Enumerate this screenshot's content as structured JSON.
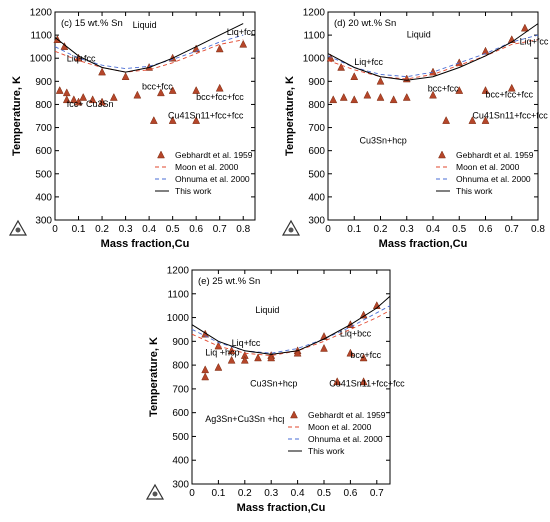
{
  "chart_data": [
    {
      "type": "line",
      "panel_label": "(c) 15 wt.% Sn",
      "xlabel": "Mass fraction,Cu",
      "ylabel": "Temperature, K",
      "xlim": [
        0,
        0.85
      ],
      "ylim": [
        300,
        1200
      ],
      "xticks": [
        0,
        0.1,
        0.2,
        0.3,
        0.4,
        0.5,
        0.6,
        0.7,
        0.8
      ],
      "xtick_labels": [
        "0",
        "0.1",
        "0.2",
        "0.3",
        "0.4",
        "0.5",
        "0.6",
        "0.7",
        "0.8"
      ],
      "yticks": [
        300,
        400,
        500,
        600,
        700,
        800,
        900,
        1000,
        1100,
        1200
      ],
      "ytick_labels": [
        "300",
        "400",
        "500",
        "600",
        "700",
        "800",
        "900",
        "1000",
        "1100",
        "1200"
      ],
      "legend_position": "center-right",
      "series": [
        {
          "name": "Gebhardt et al. 1959",
          "style": "marker",
          "points": [
            [
              0.01,
              1080
            ],
            [
              0.04,
              1050
            ],
            [
              0.1,
              1000
            ],
            [
              0.2,
              940
            ],
            [
              0.3,
              920
            ],
            [
              0.4,
              960
            ],
            [
              0.5,
              1000
            ],
            [
              0.6,
              1040
            ],
            [
              0.7,
              1040
            ],
            [
              0.8,
              1060
            ],
            [
              0.02,
              860
            ],
            [
              0.05,
              850
            ],
            [
              0.08,
              820
            ],
            [
              0.12,
              830
            ],
            [
              0.16,
              820
            ],
            [
              0.2,
              810
            ],
            [
              0.25,
              830
            ],
            [
              0.35,
              840
            ],
            [
              0.45,
              850
            ],
            [
              0.5,
              860
            ],
            [
              0.6,
              860
            ],
            [
              0.7,
              870
            ],
            [
              0.05,
              820
            ],
            [
              0.1,
              810
            ],
            [
              0.42,
              730
            ],
            [
              0.5,
              730
            ],
            [
              0.6,
              730
            ]
          ]
        },
        {
          "name": "Moon et al. 2000",
          "style": "dashed",
          "color": "#e2472e",
          "points": [
            [
              0,
              1030
            ],
            [
              0.1,
              990
            ],
            [
              0.2,
              960
            ],
            [
              0.3,
              940
            ],
            [
              0.4,
              950
            ],
            [
              0.5,
              980
            ],
            [
              0.6,
              1020
            ],
            [
              0.7,
              1060
            ],
            [
              0.8,
              1080
            ]
          ]
        },
        {
          "name": "Ohnuma et al. 2000",
          "style": "dashed",
          "color": "#4a6cd4",
          "points": [
            [
              0,
              1050
            ],
            [
              0.1,
              1000
            ],
            [
              0.2,
              970
            ],
            [
              0.3,
              955
            ],
            [
              0.4,
              965
            ],
            [
              0.5,
              995
            ],
            [
              0.6,
              1030
            ],
            [
              0.7,
              1070
            ],
            [
              0.8,
              1100
            ]
          ]
        },
        {
          "name": "This work",
          "style": "solid",
          "color": "#000000",
          "points": [
            [
              0,
              1090
            ],
            [
              0.1,
              1010
            ],
            [
              0.2,
              960
            ],
            [
              0.3,
              940
            ],
            [
              0.4,
              960
            ],
            [
              0.5,
              1000
            ],
            [
              0.6,
              1050
            ],
            [
              0.7,
              1100
            ],
            [
              0.8,
              1150
            ]
          ]
        }
      ],
      "region_labels": [
        "Liquid",
        "Liq+fcc",
        "Liq+fcc",
        "bcc+fcc",
        "bcc+fcc+fcc",
        "fcc+ Cu3Sn",
        "Cu41Sn11+fcc+fcc"
      ]
    },
    {
      "type": "line",
      "panel_label": "(d) 20 wt.% Sn",
      "xlabel": "Mass fraction,Cu",
      "ylabel": "Temperature, K",
      "xlim": [
        0,
        0.8
      ],
      "ylim": [
        300,
        1200
      ],
      "xticks": [
        0,
        0.1,
        0.2,
        0.3,
        0.4,
        0.5,
        0.6,
        0.7,
        0.8
      ],
      "xtick_labels": [
        "0",
        "0.1",
        "0.2",
        "0.3",
        "0.4",
        "0.5",
        "0.6",
        "0.7",
        "0.8"
      ],
      "yticks": [
        300,
        400,
        500,
        600,
        700,
        800,
        900,
        1000,
        1100,
        1200
      ],
      "ytick_labels": [
        "300",
        "400",
        "500",
        "600",
        "700",
        "800",
        "900",
        "1000",
        "1100",
        "1200"
      ],
      "legend_position": "center-right",
      "series": [
        {
          "name": "Gebhardt et al. 1959",
          "style": "marker",
          "points": [
            [
              0.01,
              1000
            ],
            [
              0.05,
              960
            ],
            [
              0.1,
              920
            ],
            [
              0.2,
              900
            ],
            [
              0.3,
              910
            ],
            [
              0.4,
              940
            ],
            [
              0.5,
              980
            ],
            [
              0.6,
              1030
            ],
            [
              0.7,
              1080
            ],
            [
              0.75,
              1130
            ],
            [
              0.02,
              820
            ],
            [
              0.06,
              830
            ],
            [
              0.1,
              820
            ],
            [
              0.15,
              840
            ],
            [
              0.2,
              830
            ],
            [
              0.25,
              820
            ],
            [
              0.3,
              830
            ],
            [
              0.4,
              840
            ],
            [
              0.5,
              860
            ],
            [
              0.6,
              860
            ],
            [
              0.7,
              870
            ],
            [
              0.45,
              730
            ],
            [
              0.55,
              730
            ],
            [
              0.6,
              730
            ]
          ]
        },
        {
          "name": "Moon et al. 2000",
          "style": "dashed",
          "color": "#e2472e",
          "points": [
            [
              0,
              990
            ],
            [
              0.1,
              950
            ],
            [
              0.2,
              920
            ],
            [
              0.3,
              910
            ],
            [
              0.4,
              930
            ],
            [
              0.5,
              970
            ],
            [
              0.6,
              1010
            ],
            [
              0.7,
              1060
            ],
            [
              0.8,
              1080
            ]
          ]
        },
        {
          "name": "Ohnuma et al. 2000",
          "style": "dashed",
          "color": "#4a6cd4",
          "points": [
            [
              0,
              1010
            ],
            [
              0.1,
              960
            ],
            [
              0.2,
              930
            ],
            [
              0.3,
              920
            ],
            [
              0.4,
              940
            ],
            [
              0.5,
              980
            ],
            [
              0.6,
              1020
            ],
            [
              0.7,
              1070
            ],
            [
              0.8,
              1100
            ]
          ]
        },
        {
          "name": "This work",
          "style": "solid",
          "color": "#000000",
          "points": [
            [
              0,
              1020
            ],
            [
              0.1,
              960
            ],
            [
              0.2,
              920
            ],
            [
              0.3,
              905
            ],
            [
              0.4,
              920
            ],
            [
              0.5,
              960
            ],
            [
              0.6,
              1010
            ],
            [
              0.7,
              1070
            ],
            [
              0.8,
              1150
            ]
          ]
        }
      ],
      "region_labels": [
        "Liquid",
        "Liq+fcc",
        "Liq+fcc",
        "bcc+fcc",
        "bcc+fcc+fcc",
        "Cu3Sn+hcp",
        "Cu41Sn11+fcc+fcc"
      ]
    },
    {
      "type": "line",
      "panel_label": "(e) 25 wt.% Sn",
      "xlabel": "Mass fraction,Cu",
      "ylabel": "Temperature, K",
      "xlim": [
        0,
        0.75
      ],
      "ylim": [
        300,
        1200
      ],
      "xticks": [
        0,
        0.1,
        0.2,
        0.3,
        0.4,
        0.5,
        0.6,
        0.7
      ],
      "xtick_labels": [
        "0",
        "0.1",
        "0.2",
        "0.3",
        "0.4",
        "0.5",
        "0.6",
        "0.7"
      ],
      "yticks": [
        300,
        400,
        500,
        600,
        700,
        800,
        900,
        1000,
        1100,
        1200
      ],
      "ytick_labels": [
        "300",
        "400",
        "500",
        "600",
        "700",
        "800",
        "900",
        "1000",
        "1100",
        "1200"
      ],
      "legend_position": "center-right",
      "series": [
        {
          "name": "Gebhardt et al. 1959",
          "style": "marker",
          "points": [
            [
              0.05,
              930
            ],
            [
              0.1,
              880
            ],
            [
              0.15,
              860
            ],
            [
              0.2,
              840
            ],
            [
              0.3,
              840
            ],
            [
              0.4,
              860
            ],
            [
              0.5,
              920
            ],
            [
              0.6,
              970
            ],
            [
              0.65,
              1010
            ],
            [
              0.7,
              1050
            ],
            [
              0.05,
              780
            ],
            [
              0.05,
              750
            ],
            [
              0.1,
              790
            ],
            [
              0.15,
              820
            ],
            [
              0.2,
              820
            ],
            [
              0.25,
              830
            ],
            [
              0.3,
              830
            ],
            [
              0.4,
              850
            ],
            [
              0.5,
              870
            ],
            [
              0.6,
              850
            ],
            [
              0.65,
              830
            ],
            [
              0.55,
              730
            ],
            [
              0.65,
              730
            ]
          ]
        },
        {
          "name": "Moon et al. 2000",
          "style": "dashed",
          "color": "#e2472e",
          "points": [
            [
              0,
              930
            ],
            [
              0.1,
              880
            ],
            [
              0.2,
              850
            ],
            [
              0.3,
              840
            ],
            [
              0.4,
              860
            ],
            [
              0.5,
              900
            ],
            [
              0.6,
              950
            ],
            [
              0.7,
              1000
            ],
            [
              0.75,
              1030
            ]
          ]
        },
        {
          "name": "Ohnuma et al. 2000",
          "style": "dashed",
          "color": "#4a6cd4",
          "points": [
            [
              0,
              950
            ],
            [
              0.1,
              895
            ],
            [
              0.2,
              860
            ],
            [
              0.3,
              850
            ],
            [
              0.4,
              870
            ],
            [
              0.5,
              910
            ],
            [
              0.6,
              960
            ],
            [
              0.7,
              1020
            ],
            [
              0.75,
              1050
            ]
          ]
        },
        {
          "name": "This work",
          "style": "solid",
          "color": "#000000",
          "points": [
            [
              0,
              970
            ],
            [
              0.1,
              900
            ],
            [
              0.2,
              860
            ],
            [
              0.3,
              845
            ],
            [
              0.4,
              860
            ],
            [
              0.5,
              910
            ],
            [
              0.6,
              970
            ],
            [
              0.7,
              1040
            ],
            [
              0.75,
              1090
            ]
          ]
        }
      ],
      "region_labels": [
        "Liquid",
        "Liq+fcc",
        "Liq+bcc",
        "Liq +hcp",
        "bcc+fcc",
        "Cu3Sn+hcp",
        "Cu41Sn11+fcc+fcc",
        "Ag3Sn+Cu3Sn +hcp"
      ]
    }
  ]
}
